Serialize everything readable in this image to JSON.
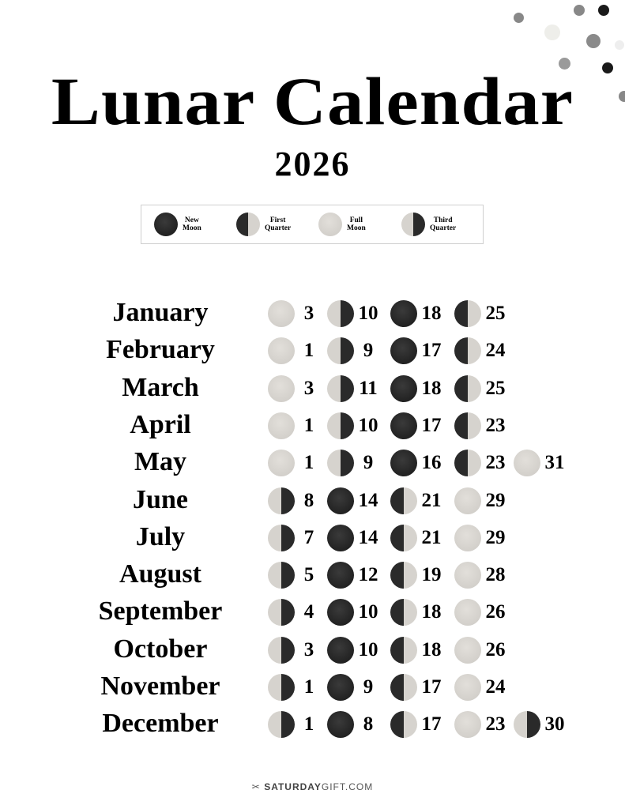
{
  "title": "Lunar Calendar",
  "year": "2026",
  "colors": {
    "new_moon": "#2a2a2a",
    "full_moon": "#d6d3ce"
  },
  "legend": [
    {
      "phase": "new",
      "label_line1": "New",
      "label_line2": "Moon"
    },
    {
      "phase": "first",
      "label_line1": "First",
      "label_line2": "Quarter"
    },
    {
      "phase": "full",
      "label_line1": "Full",
      "label_line2": "Moon"
    },
    {
      "phase": "third",
      "label_line1": "Third",
      "label_line2": "Quarter"
    }
  ],
  "months": [
    {
      "name": "January",
      "phases": [
        {
          "phase": "full",
          "day": "3"
        },
        {
          "phase": "third",
          "day": "10"
        },
        {
          "phase": "new",
          "day": "18"
        },
        {
          "phase": "first",
          "day": "25"
        }
      ]
    },
    {
      "name": "February",
      "phases": [
        {
          "phase": "full",
          "day": "1"
        },
        {
          "phase": "third",
          "day": "9"
        },
        {
          "phase": "new",
          "day": "17"
        },
        {
          "phase": "first",
          "day": "24"
        }
      ]
    },
    {
      "name": "March",
      "phases": [
        {
          "phase": "full",
          "day": "3"
        },
        {
          "phase": "third",
          "day": "11"
        },
        {
          "phase": "new",
          "day": "18"
        },
        {
          "phase": "first",
          "day": "25"
        }
      ]
    },
    {
      "name": "April",
      "phases": [
        {
          "phase": "full",
          "day": "1"
        },
        {
          "phase": "third",
          "day": "10"
        },
        {
          "phase": "new",
          "day": "17"
        },
        {
          "phase": "first",
          "day": "23"
        }
      ]
    },
    {
      "name": "May",
      "phases": [
        {
          "phase": "full",
          "day": "1"
        },
        {
          "phase": "third",
          "day": "9"
        },
        {
          "phase": "new",
          "day": "16"
        },
        {
          "phase": "first",
          "day": "23"
        },
        {
          "phase": "full",
          "day": "31"
        }
      ]
    },
    {
      "name": "June",
      "phases": [
        {
          "phase": "third",
          "day": "8"
        },
        {
          "phase": "new",
          "day": "14"
        },
        {
          "phase": "first",
          "day": "21"
        },
        {
          "phase": "full",
          "day": "29"
        }
      ]
    },
    {
      "name": "July",
      "phases": [
        {
          "phase": "third",
          "day": "7"
        },
        {
          "phase": "new",
          "day": "14"
        },
        {
          "phase": "first",
          "day": "21"
        },
        {
          "phase": "full",
          "day": "29"
        }
      ]
    },
    {
      "name": "August",
      "phases": [
        {
          "phase": "third",
          "day": "5"
        },
        {
          "phase": "new",
          "day": "12"
        },
        {
          "phase": "first",
          "day": "19"
        },
        {
          "phase": "full",
          "day": "28"
        }
      ]
    },
    {
      "name": "September",
      "phases": [
        {
          "phase": "third",
          "day": "4"
        },
        {
          "phase": "new",
          "day": "10"
        },
        {
          "phase": "first",
          "day": "18"
        },
        {
          "phase": "full",
          "day": "26"
        }
      ]
    },
    {
      "name": "October",
      "phases": [
        {
          "phase": "third",
          "day": "3"
        },
        {
          "phase": "new",
          "day": "10"
        },
        {
          "phase": "first",
          "day": "18"
        },
        {
          "phase": "full",
          "day": "26"
        }
      ]
    },
    {
      "name": "November",
      "phases": [
        {
          "phase": "third",
          "day": "1"
        },
        {
          "phase": "new",
          "day": "9"
        },
        {
          "phase": "first",
          "day": "17"
        },
        {
          "phase": "full",
          "day": "24"
        }
      ]
    },
    {
      "name": "December",
      "phases": [
        {
          "phase": "third",
          "day": "1"
        },
        {
          "phase": "new",
          "day": "8"
        },
        {
          "phase": "first",
          "day": "17"
        },
        {
          "phase": "full",
          "day": "23"
        },
        {
          "phase": "third",
          "day": "30"
        }
      ]
    }
  ],
  "footer": {
    "brand_bold": "SATURDAY",
    "brand_rest": "GIFT.COM"
  }
}
